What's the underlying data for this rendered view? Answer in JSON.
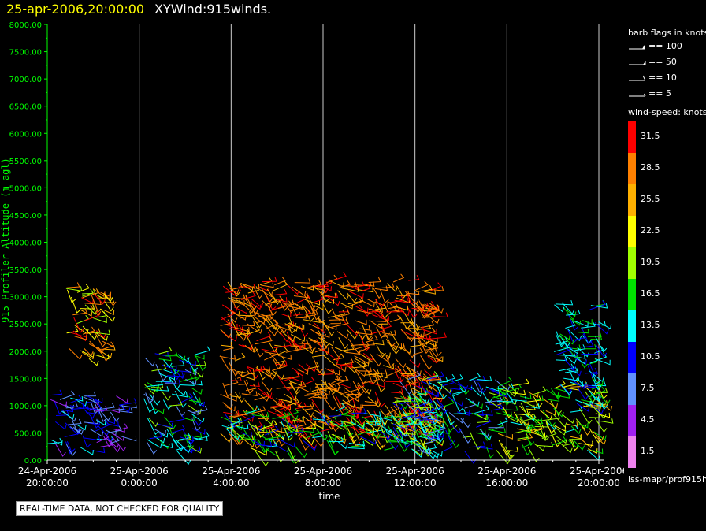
{
  "header": {
    "date_time": "25-apr-2006,20:00:00",
    "product": "XYWind:915winds."
  },
  "chart_data": {
    "type": "wind-barb time-height",
    "ylabel": "915 Profiler Altitude (m agl)",
    "xlabel": "time",
    "ylim": [
      0,
      8000
    ],
    "y_ticks": [
      "0.00",
      "500.00",
      "1000.00",
      "1500.00",
      "2000.00",
      "2500.00",
      "3000.00",
      "3500.00",
      "4000.00",
      "4500.00",
      "5000.00",
      "5500.00",
      "6000.00",
      "6500.00",
      "7000.00",
      "7500.00",
      "8000.00"
    ],
    "x_ticks": [
      {
        "date": "24-Apr-2006",
        "time": "20:00:00",
        "hour": 0
      },
      {
        "date": "25-Apr-2006",
        "time": "0:00:00",
        "hour": 4
      },
      {
        "date": "25-Apr-2006",
        "time": "4:00:00",
        "hour": 8
      },
      {
        "date": "25-Apr-2006",
        "time": "8:00:00",
        "hour": 12
      },
      {
        "date": "25-Apr-2006",
        "time": "12:00:00",
        "hour": 16
      },
      {
        "date": "25-Apr-2006",
        "time": "16:00:00",
        "hour": 20
      },
      {
        "date": "25-Apr-2006",
        "time": "20:00:00",
        "hour": 24
      }
    ],
    "xlim_hours": [
      0,
      24
    ],
    "vertical_gridlines": true,
    "wind_regions": [
      {
        "t0": 0.0,
        "t1": 3.2,
        "h0": 150,
        "h1": 1200,
        "speed": [
          4.5,
          13.5
        ]
      },
      {
        "t0": 0.8,
        "t1": 2.5,
        "h0": 1800,
        "h1": 3200,
        "speed": [
          19.5,
          31.5
        ]
      },
      {
        "t0": 4.2,
        "t1": 6.5,
        "h0": 150,
        "h1": 2000,
        "speed": [
          7.5,
          19.5
        ]
      },
      {
        "t0": 7.5,
        "t1": 16.8,
        "h0": 400,
        "h1": 3300,
        "speed": [
          25.5,
          31.5
        ]
      },
      {
        "t0": 7.5,
        "t1": 16.8,
        "h0": 150,
        "h1": 900,
        "speed": [
          10.5,
          22.5
        ]
      },
      {
        "t0": 15.0,
        "t1": 19.5,
        "h0": 150,
        "h1": 1500,
        "speed": [
          7.5,
          19.5
        ]
      },
      {
        "t0": 19.5,
        "t1": 24.0,
        "h0": 150,
        "h1": 1400,
        "speed": [
          13.5,
          25.5
        ]
      },
      {
        "t0": 22.0,
        "t1": 24.0,
        "h0": 1000,
        "h1": 2900,
        "speed": [
          10.5,
          16.5
        ]
      }
    ]
  },
  "legend": {
    "barb_header": "barb flags in knots",
    "barbs": [
      {
        "label": "== 100",
        "kind": "pennant"
      },
      {
        "label": "== 50",
        "kind": "flag"
      },
      {
        "label": "== 10",
        "kind": "full"
      },
      {
        "label": "== 5",
        "kind": "half"
      }
    ],
    "speed_header": "wind-speed: knots",
    "colorbar": [
      {
        "label": "31.5",
        "color": "#ff0000"
      },
      {
        "label": "28.5",
        "color": "#ff8000"
      },
      {
        "label": "25.5",
        "color": "#ffb000"
      },
      {
        "label": "22.5",
        "color": "#ffff00"
      },
      {
        "label": "19.5",
        "color": "#a0ff00"
      },
      {
        "label": "16.5",
        "color": "#00e000"
      },
      {
        "label": "13.5",
        "color": "#00ffff"
      },
      {
        "label": "10.5",
        "color": "#0000ff"
      },
      {
        "label": "7.5",
        "color": "#6090ff"
      },
      {
        "label": "4.5",
        "color": "#a020f0"
      },
      {
        "label": "1.5",
        "color": "#ee82ee"
      }
    ],
    "footer": "iss-mapr/prof915h"
  },
  "note": "REAL-TIME DATA, NOT CHECKED FOR QUALITY",
  "colors": {
    "axis": "#00ff00",
    "date": "#ffff00",
    "grid": "#ffffff"
  }
}
